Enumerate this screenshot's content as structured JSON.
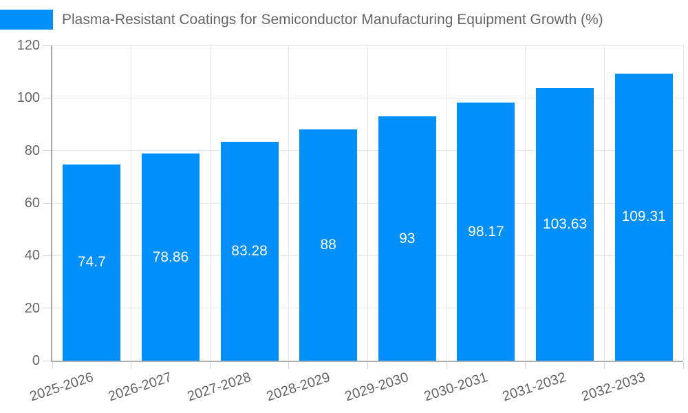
{
  "header": {
    "legend_label": "Plasma-Resistant Coatings for Semiconductor Manufacturing Equipment Growth (%)"
  },
  "chart_data": {
    "type": "bar",
    "title": "Plasma-Resistant Coatings for Semiconductor Manufacturing Equipment Growth (%)",
    "xlabel": "",
    "ylabel": "",
    "categories": [
      "2025-2026",
      "2026-2027",
      "2027-2028",
      "2028-2029",
      "2029-2030",
      "2030-2031",
      "2031-2032",
      "2032-2033"
    ],
    "values": [
      74.7,
      78.86,
      83.28,
      88,
      93,
      98.17,
      103.63,
      109.31
    ],
    "value_labels": [
      "74.7",
      "78.86",
      "83.28",
      "88",
      "93",
      "98.17",
      "103.63",
      "109.31"
    ],
    "ylim": [
      0,
      120
    ],
    "yticks": [
      0,
      20,
      40,
      60,
      80,
      100,
      120
    ],
    "grid": true,
    "legend_position": "top-left",
    "colors": {
      "bar": "#008FFB",
      "bar_label": "#FFFFFF",
      "axis_text": "#666666"
    }
  }
}
